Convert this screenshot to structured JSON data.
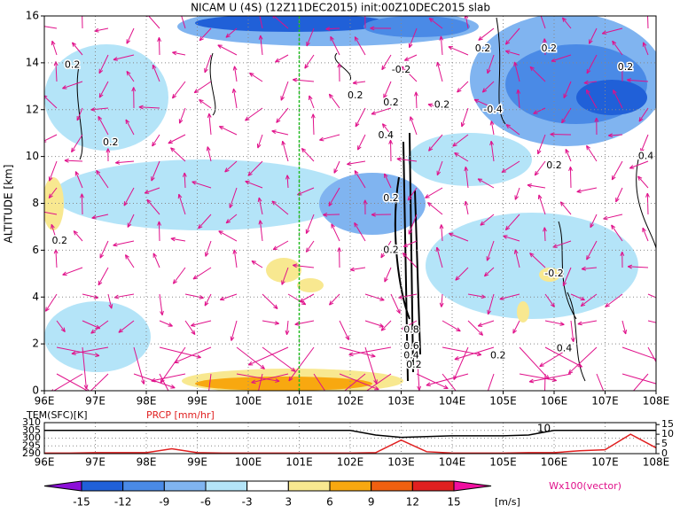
{
  "chart_data": [
    {
      "type": "contour",
      "title": "NICAM U (4S) (12Z11DEC2015) init:00Z10DEC2015 slab",
      "y_label": "ALTITUDE [km]",
      "xlim": [
        96,
        108
      ],
      "xticks": [
        {
          "value": 96,
          "label": "96E"
        },
        {
          "value": 97,
          "label": "97E"
        },
        {
          "value": 98,
          "label": "98E"
        },
        {
          "value": 99,
          "label": "99E"
        },
        {
          "value": 100,
          "label": "100E"
        },
        {
          "value": 101,
          "label": "101E"
        },
        {
          "value": 102,
          "label": "102E"
        },
        {
          "value": 103,
          "label": "103E"
        },
        {
          "value": 104,
          "label": "104E"
        },
        {
          "value": 105,
          "label": "105E"
        },
        {
          "value": 106,
          "label": "106E"
        },
        {
          "value": 107,
          "label": "107E"
        },
        {
          "value": 108,
          "label": "108E"
        }
      ],
      "ylim": [
        0,
        16
      ],
      "yticks": [
        0,
        2,
        4,
        6,
        8,
        10,
        12,
        14,
        16
      ],
      "grid": true,
      "vline": {
        "x": 101,
        "color": "#22bb22"
      },
      "annotations": [
        {
          "text": "0.2",
          "x": 96.55,
          "y": 13.9
        },
        {
          "text": "0.2",
          "x": 97.3,
          "y": 10.6
        },
        {
          "text": "0.2",
          "x": 96.3,
          "y": 6.4
        },
        {
          "text": "0.2",
          "x": 102.1,
          "y": 12.6
        },
        {
          "text": "-0.2",
          "x": 103.0,
          "y": 13.7
        },
        {
          "text": "0.2",
          "x": 102.8,
          "y": 12.3
        },
        {
          "text": "0.2",
          "x": 103.8,
          "y": 12.2
        },
        {
          "text": "0.2",
          "x": 104.6,
          "y": 14.6
        },
        {
          "text": "-0.4",
          "x": 104.8,
          "y": 12.0
        },
        {
          "text": "0.2",
          "x": 105.9,
          "y": 14.6
        },
        {
          "text": "0.2",
          "x": 107.4,
          "y": 13.8
        },
        {
          "text": "0.2",
          "x": 106.0,
          "y": 9.6
        },
        {
          "text": "0.4",
          "x": 107.8,
          "y": 10.0
        },
        {
          "text": "0.4",
          "x": 102.7,
          "y": 10.9
        },
        {
          "text": "0.2",
          "x": 102.8,
          "y": 8.2
        },
        {
          "text": "0.2",
          "x": 102.8,
          "y": 6.0
        },
        {
          "text": "-0.2",
          "x": 106.0,
          "y": 5.0
        },
        {
          "text": "0.8",
          "x": 103.2,
          "y": 2.6
        },
        {
          "text": "0.6",
          "x": 103.2,
          "y": 1.9
        },
        {
          "text": "0.4",
          "x": 103.2,
          "y": 1.5
        },
        {
          "text": "0.2",
          "x": 103.25,
          "y": 1.1
        },
        {
          "text": "0.2",
          "x": 104.9,
          "y": 1.5
        },
        {
          "text": "0.4",
          "x": 106.2,
          "y": 1.8
        }
      ]
    },
    {
      "type": "line",
      "x": [
        96,
        96.5,
        97,
        97.5,
        98,
        98.5,
        99,
        99.5,
        100,
        100.5,
        101,
        101.5,
        102,
        102.5,
        103,
        103.5,
        104,
        104.5,
        105,
        105.5,
        106,
        106.5,
        107,
        107.5,
        108
      ],
      "series": [
        {
          "name": "TEM(SFC)[K]",
          "color": "#000000",
          "values": [
            305,
            305,
            305,
            305,
            305,
            305,
            305,
            305,
            305,
            305,
            305,
            305,
            305,
            302,
            300.5,
            301,
            301.5,
            301.5,
            301.5,
            302,
            305,
            305,
            305,
            305,
            305
          ]
        },
        {
          "name": "PRCP [mm/hr]",
          "color": "#e02020",
          "axis": "y2",
          "values": [
            0.3,
            0.3,
            0.5,
            0.5,
            0.5,
            2.5,
            0.5,
            0.3,
            0.3,
            0.3,
            0.3,
            0.3,
            0.3,
            0.5,
            7,
            1,
            0.3,
            0.3,
            0.3,
            0.5,
            0.5,
            1.5,
            2,
            10,
            3
          ]
        }
      ],
      "xlim": [
        96,
        108
      ],
      "xticks": [
        {
          "value": 96,
          "label": "96E"
        },
        {
          "value": 97,
          "label": "97E"
        },
        {
          "value": 98,
          "label": "98E"
        },
        {
          "value": 99,
          "label": "99E"
        },
        {
          "value": 100,
          "label": "100E"
        },
        {
          "value": 101,
          "label": "101E"
        },
        {
          "value": 102,
          "label": "102E"
        },
        {
          "value": 103,
          "label": "103E"
        },
        {
          "value": 104,
          "label": "104E"
        },
        {
          "value": 105,
          "label": "105E"
        },
        {
          "value": 106,
          "label": "106E"
        },
        {
          "value": 107,
          "label": "107E"
        },
        {
          "value": 108,
          "label": "108E"
        }
      ],
      "ylim": [
        290,
        310
      ],
      "yticks": [
        290,
        295,
        300,
        305,
        310
      ],
      "y2lim": [
        0,
        16
      ],
      "y2ticks": [
        0,
        5,
        10,
        15
      ],
      "annotations": [
        {
          "text": "10",
          "x": 105.8,
          "y": 306
        }
      ]
    },
    {
      "type": "colorbar",
      "levels": [
        -15,
        -12,
        -9,
        -6,
        -3,
        3,
        6,
        9,
        12,
        15
      ],
      "colors": [
        "#8c10d8",
        "#2060d8",
        "#4a8ae6",
        "#80b4f0",
        "#b4e4f8",
        "#ffffff",
        "#f8e890",
        "#f8a810",
        "#f06010",
        "#e02020",
        "#b00010",
        "#f010a0"
      ],
      "unit": "[m/s]",
      "note": "Wx100(vector)"
    }
  ]
}
